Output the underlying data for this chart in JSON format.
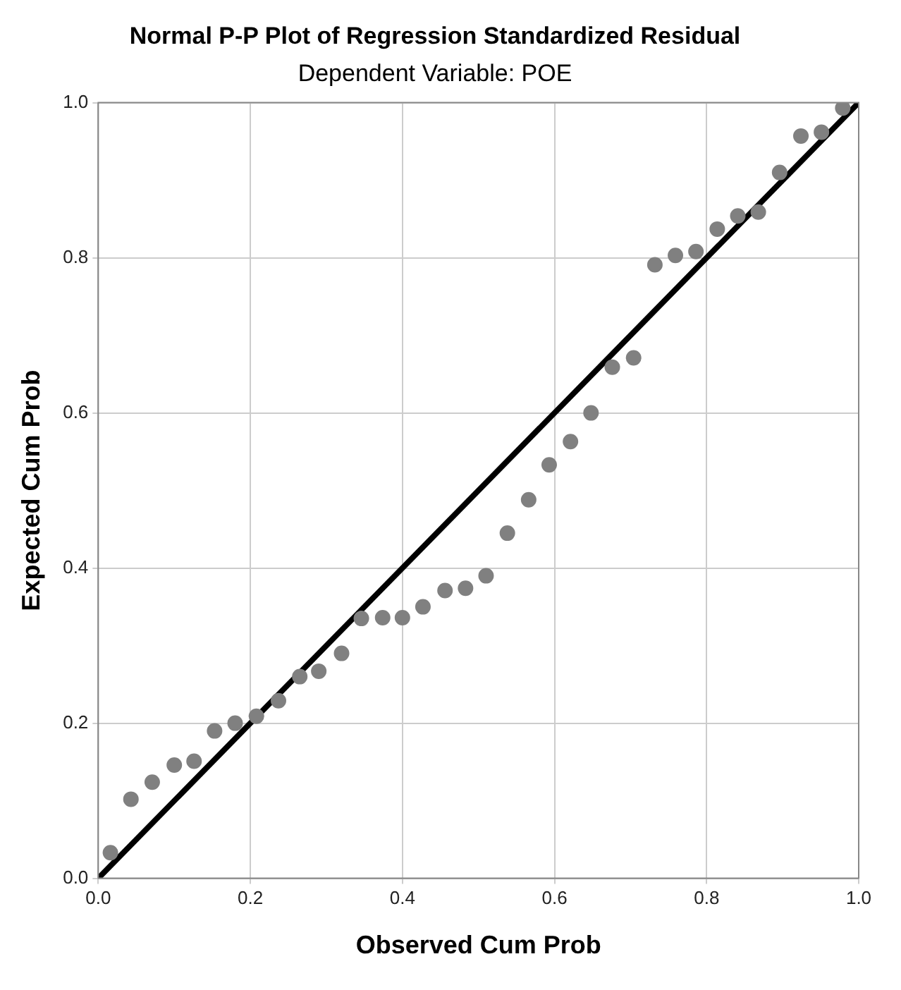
{
  "chart_data": {
    "type": "scatter",
    "title": "Normal P-P Plot of Regression Standardized Residual",
    "subtitle": "Dependent Variable: POE",
    "xlabel": "Observed Cum Prob",
    "ylabel": "Expected Cum Prob",
    "xlim": [
      0,
      1
    ],
    "ylim": [
      0,
      1
    ],
    "xticks": [
      {
        "value": 0,
        "label": "0.0"
      },
      {
        "value": 0.2,
        "label": "0.2"
      },
      {
        "value": 0.4,
        "label": "0.4"
      },
      {
        "value": 0.6,
        "label": "0.6"
      },
      {
        "value": 0.8,
        "label": "0.8"
      },
      {
        "value": 1,
        "label": "1.0"
      }
    ],
    "yticks": [
      {
        "value": 0,
        "label": "0.0"
      },
      {
        "value": 0.2,
        "label": "0.2"
      },
      {
        "value": 0.4,
        "label": "0.4"
      },
      {
        "value": 0.6,
        "label": "0.6"
      },
      {
        "value": 0.8,
        "label": "0.8"
      },
      {
        "value": 1,
        "label": "1.0"
      }
    ],
    "grid": true,
    "series": [
      {
        "marker": "circle",
        "color": "#808080",
        "x": [
          0.016,
          0.043,
          0.071,
          0.1,
          0.126,
          0.153,
          0.18,
          0.208,
          0.237,
          0.265,
          0.29,
          0.32,
          0.346,
          0.374,
          0.4,
          0.427,
          0.456,
          0.483,
          0.51,
          0.538,
          0.566,
          0.593,
          0.621,
          0.648,
          0.676,
          0.704,
          0.732,
          0.759,
          0.786,
          0.814,
          0.841,
          0.868,
          0.896,
          0.924,
          0.951,
          0.979
        ],
        "values": [
          0.033,
          0.102,
          0.124,
          0.146,
          0.151,
          0.19,
          0.2,
          0.209,
          0.229,
          0.26,
          0.267,
          0.29,
          0.335,
          0.336,
          0.336,
          0.35,
          0.371,
          0.374,
          0.39,
          0.445,
          0.488,
          0.533,
          0.563,
          0.6,
          0.659,
          0.671,
          0.791,
          0.803,
          0.808,
          0.837,
          0.854,
          0.859,
          0.91,
          0.957,
          0.962,
          0.993
        ]
      },
      {
        "type": "line",
        "color": "#000000",
        "x": [
          0,
          1
        ],
        "values": [
          0,
          1
        ]
      }
    ]
  }
}
